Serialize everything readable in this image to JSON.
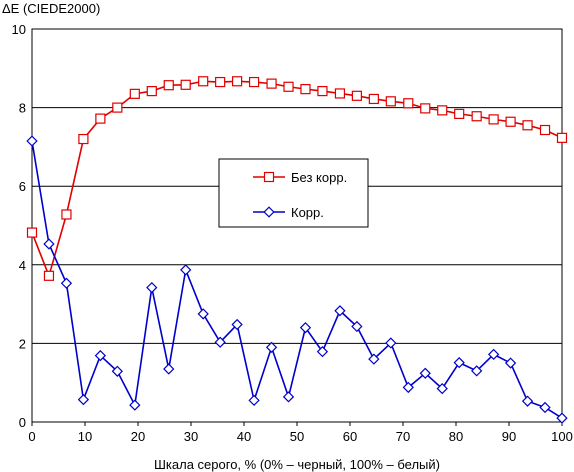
{
  "chart_data": {
    "type": "line",
    "ylabel": "ΔE (CIEDE2000)",
    "xlabel": "Шкала серого, % (0% – черный, 100% – белый)",
    "xlim": [
      0,
      100
    ],
    "ylim": [
      0,
      10
    ],
    "x_ticks": [
      0,
      10,
      20,
      30,
      40,
      50,
      60,
      70,
      80,
      90,
      100
    ],
    "y_ticks": [
      0,
      2,
      4,
      6,
      8,
      10
    ],
    "grid": "horizontal",
    "legend_position": "center-right",
    "x": [
      0,
      3.2,
      6.5,
      9.7,
      12.9,
      16.1,
      19.4,
      22.6,
      25.8,
      29.0,
      32.3,
      35.5,
      38.7,
      41.9,
      45.2,
      48.4,
      51.6,
      54.8,
      58.1,
      61.3,
      64.5,
      67.7,
      71.0,
      74.2,
      77.4,
      80.6,
      83.9,
      87.1,
      90.3,
      93.5,
      96.8,
      100
    ],
    "series": [
      {
        "name": "Без корр.",
        "color": "#e00000",
        "marker": "square",
        "values": [
          4.82,
          3.72,
          5.28,
          7.2,
          7.72,
          8.0,
          8.35,
          8.42,
          8.57,
          8.58,
          8.67,
          8.65,
          8.67,
          8.65,
          8.61,
          8.53,
          8.47,
          8.42,
          8.36,
          8.3,
          8.22,
          8.16,
          8.11,
          7.98,
          7.93,
          7.84,
          7.78,
          7.7,
          7.64,
          7.55,
          7.43,
          7.23
        ]
      },
      {
        "name": "Корр.",
        "color": "#0000cc",
        "marker": "diamond",
        "values": [
          7.15,
          4.53,
          3.53,
          0.57,
          1.69,
          1.29,
          0.43,
          3.42,
          1.35,
          3.87,
          2.75,
          2.03,
          2.48,
          0.55,
          1.9,
          0.64,
          2.4,
          1.79,
          2.83,
          2.43,
          1.6,
          2.01,
          0.88,
          1.24,
          0.85,
          1.51,
          1.3,
          1.72,
          1.5,
          0.53,
          0.37,
          0.1
        ]
      }
    ]
  }
}
